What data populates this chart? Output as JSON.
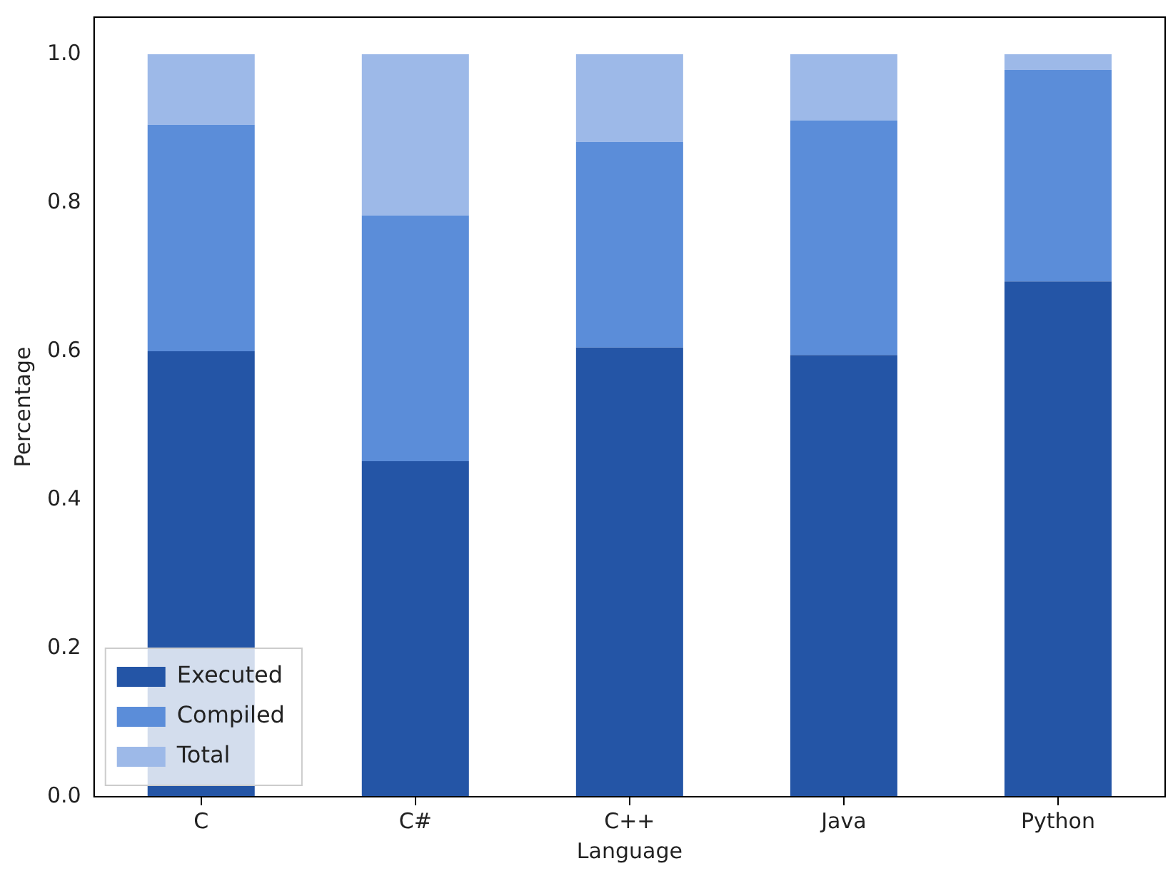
{
  "chart_data": {
    "type": "bar",
    "stacked": true,
    "xlabel": "Language",
    "ylabel": "Percentage",
    "categories": [
      "C",
      "C#",
      "C++",
      "Java",
      "Python"
    ],
    "series": [
      {
        "name": "Executed",
        "color": "#2455a6",
        "values": [
          0.6,
          0.452,
          0.605,
          0.595,
          0.694
        ]
      },
      {
        "name": "Compiled",
        "color": "#5b8dd9",
        "values": [
          0.305,
          0.331,
          0.277,
          0.316,
          0.285
        ]
      },
      {
        "name": "Total",
        "color": "#9db9e8",
        "values": [
          0.095,
          0.217,
          0.118,
          0.089,
          0.021
        ]
      }
    ],
    "ylim": [
      0,
      1.05
    ],
    "yticks": [
      {
        "value": 0,
        "label": "0.0"
      },
      {
        "value": 0.2,
        "label": "0.2"
      },
      {
        "value": 0.4,
        "label": "0.4"
      },
      {
        "value": 0.6,
        "label": "0.6"
      },
      {
        "value": 0.8,
        "label": "0.8"
      },
      {
        "value": 1,
        "label": "1.0"
      }
    ],
    "grid": false,
    "legend": "bottom left"
  }
}
